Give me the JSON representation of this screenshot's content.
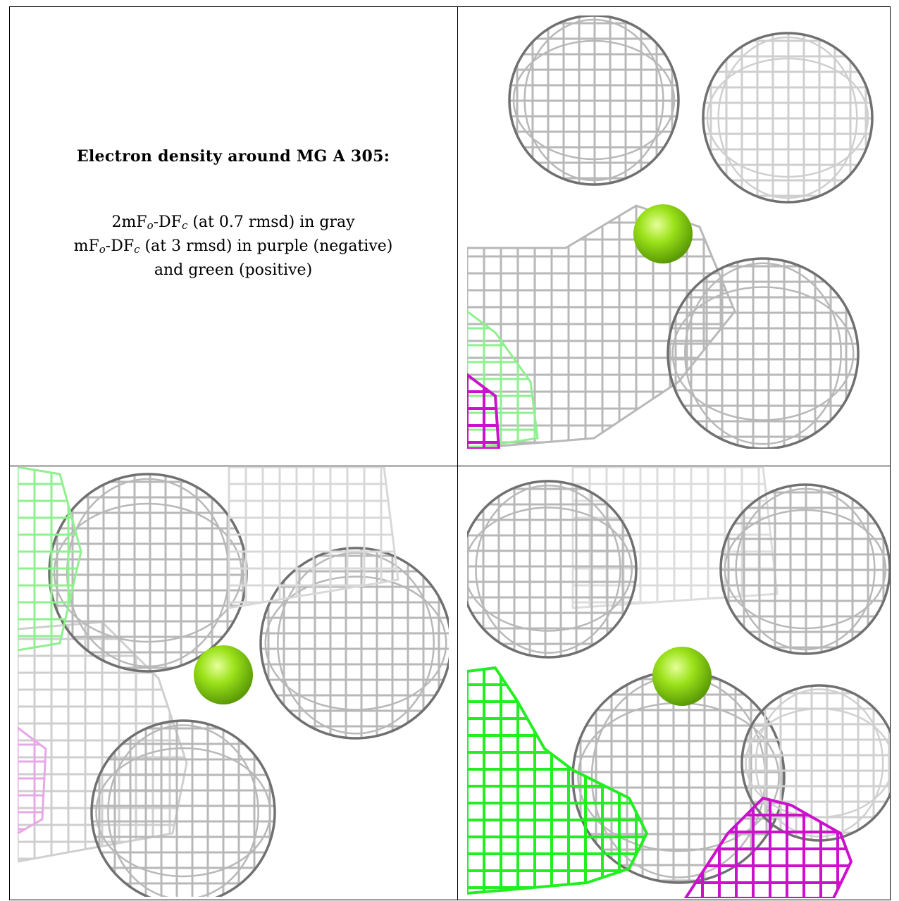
{
  "caption": {
    "title": "Electron density around MG A 305:",
    "line1": {
      "pre": "2mF",
      "sub1": "o",
      "mid": "-DF",
      "sub2": "c",
      "post": " (at 0.7 rmsd) in gray"
    },
    "line2": {
      "pre": "mF",
      "sub1": "o",
      "mid": "-DF",
      "sub2": "c",
      "post": " (at 3 rmsd) in purple (negative)"
    },
    "line3": "and green (positive)"
  },
  "colors": {
    "mesh_gray": "#b8b8b8",
    "mesh_dark": "#707070",
    "ion_green": "#9be21a",
    "positive_green": "#22ee22",
    "negative_purple": "#cc11cc"
  },
  "panels": [
    {
      "view": "top-right",
      "ion": "MG A 305"
    },
    {
      "view": "bottom-left",
      "ion": "MG A 305"
    },
    {
      "view": "bottom-right",
      "ion": "MG A 305"
    }
  ]
}
